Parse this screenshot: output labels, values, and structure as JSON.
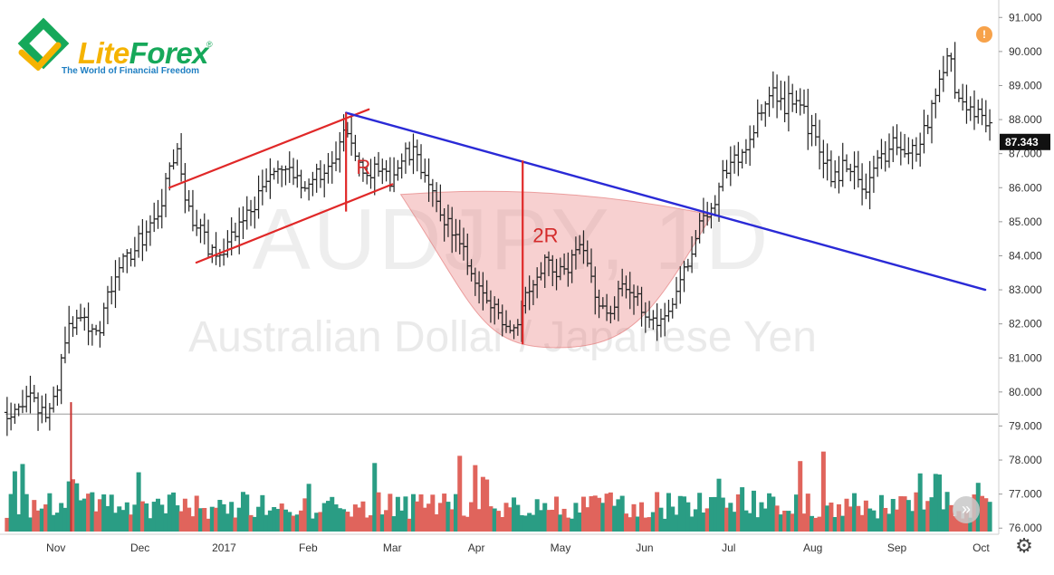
{
  "brand": {
    "name_part1": "Lite",
    "name_part2": "Forex",
    "registered": "®",
    "tagline": "The World of Financial Freedom",
    "colors": {
      "green": "#16a85a",
      "yellow": "#f5b301",
      "blue": "#1f7fc2"
    }
  },
  "watermark": {
    "symbol": "AUDJPY, 1D",
    "description": "Australian Dollar / Japanese Yen"
  },
  "alert_badge": {
    "icon": "exclamation-icon",
    "glyph": "!"
  },
  "scroll_button": {
    "icon": "double-chevron-right-icon",
    "glyph": "»"
  },
  "settings_button": {
    "icon": "gear-icon",
    "glyph": "⚙"
  },
  "chart_data": {
    "type": "ohlc-bar",
    "instrument": "AUDJPY",
    "timeframe": "1D",
    "y_axis": {
      "position": "right",
      "ylim": [
        75.9,
        91.3
      ],
      "ticks": [
        76.0,
        77.0,
        78.0,
        79.0,
        80.0,
        81.0,
        82.0,
        83.0,
        84.0,
        85.0,
        86.0,
        87.0,
        88.0,
        89.0,
        90.0,
        91.0
      ],
      "tick_labels": [
        "76.000",
        "77.000",
        "78.000",
        "79.000",
        "80.000",
        "81.000",
        "82.000",
        "83.000",
        "84.000",
        "85.000",
        "86.000",
        "87.000",
        "88.000",
        "89.000",
        "90.000",
        "91.000"
      ]
    },
    "x_axis": {
      "labels": [
        {
          "text": "Nov",
          "month": 0.6
        },
        {
          "text": "Dec",
          "month": 1.6
        },
        {
          "text": "2017",
          "month": 2.6
        },
        {
          "text": "Feb",
          "month": 3.6
        },
        {
          "text": "Mar",
          "month": 4.6
        },
        {
          "text": "Apr",
          "month": 5.6
        },
        {
          "text": "May",
          "month": 6.6
        },
        {
          "text": "Jun",
          "month": 7.6
        },
        {
          "text": "Jul",
          "month": 8.6
        },
        {
          "text": "Aug",
          "month": 9.6
        },
        {
          "text": "Sep",
          "month": 10.6
        },
        {
          "text": "Oct",
          "month": 11.6
        }
      ],
      "month_range": [
        0,
        11.8
      ]
    },
    "current_price": {
      "value": 87.343,
      "label": "87.343"
    },
    "reference_level": 79.35,
    "price_path": [
      [
        0.0,
        79.4
      ],
      [
        0.25,
        79.8
      ],
      [
        0.5,
        79.3
      ],
      [
        0.6,
        80.0
      ],
      [
        0.7,
        81.5
      ],
      [
        0.85,
        82.3
      ],
      [
        1.0,
        82.0
      ],
      [
        1.1,
        81.8
      ],
      [
        1.25,
        83.0
      ],
      [
        1.4,
        83.8
      ],
      [
        1.6,
        84.5
      ],
      [
        1.8,
        85.0
      ],
      [
        1.95,
        86.5
      ],
      [
        2.05,
        87.0
      ],
      [
        2.15,
        85.5
      ],
      [
        2.35,
        84.5
      ],
      [
        2.5,
        84.0
      ],
      [
        2.7,
        84.6
      ],
      [
        2.95,
        85.5
      ],
      [
        3.1,
        86.2
      ],
      [
        3.3,
        86.6
      ],
      [
        3.5,
        86.0
      ],
      [
        3.75,
        86.5
      ],
      [
        3.9,
        86.5
      ],
      [
        4.05,
        87.8
      ],
      [
        4.2,
        86.8
      ],
      [
        4.35,
        86.5
      ],
      [
        4.55,
        86.2
      ],
      [
        4.75,
        86.9
      ],
      [
        4.9,
        87.0
      ],
      [
        5.05,
        85.8
      ],
      [
        5.3,
        84.8
      ],
      [
        5.55,
        83.5
      ],
      [
        5.75,
        82.5
      ],
      [
        5.9,
        82.2
      ],
      [
        6.05,
        81.9
      ],
      [
        6.2,
        83.0
      ],
      [
        6.4,
        83.8
      ],
      [
        6.6,
        83.5
      ],
      [
        6.8,
        84.0
      ],
      [
        6.9,
        84.3
      ],
      [
        7.0,
        83.0
      ],
      [
        7.15,
        82.2
      ],
      [
        7.3,
        83.0
      ],
      [
        7.45,
        82.8
      ],
      [
        7.6,
        82.5
      ],
      [
        7.75,
        82.0
      ],
      [
        7.95,
        82.8
      ],
      [
        8.05,
        83.5
      ],
      [
        8.25,
        84.8
      ],
      [
        8.4,
        85.5
      ],
      [
        8.55,
        86.5
      ],
      [
        8.75,
        87.0
      ],
      [
        8.95,
        88.0
      ],
      [
        9.1,
        88.8
      ],
      [
        9.25,
        88.4
      ],
      [
        9.4,
        88.7
      ],
      [
        9.55,
        87.8
      ],
      [
        9.7,
        87.0
      ],
      [
        9.85,
        86.2
      ],
      [
        10.0,
        86.8
      ],
      [
        10.2,
        86.0
      ],
      [
        10.4,
        86.8
      ],
      [
        10.55,
        87.2
      ],
      [
        10.75,
        87.0
      ],
      [
        10.9,
        87.4
      ],
      [
        11.0,
        88.3
      ],
      [
        11.1,
        89.0
      ],
      [
        11.2,
        90.1
      ],
      [
        11.3,
        88.8
      ],
      [
        11.45,
        88.3
      ],
      [
        11.6,
        88.2
      ],
      [
        11.75,
        87.6
      ]
    ],
    "volume": {
      "baseline_price": 75.9,
      "scale_top_price": 78.6
    },
    "annotations": {
      "channel_upper": [
        [
          1.95,
          86.0
        ],
        [
          4.32,
          88.3
        ]
      ],
      "channel_lower": [
        [
          2.27,
          83.8
        ],
        [
          4.6,
          86.1
        ]
      ],
      "R_line": {
        "month": 4.05,
        "from": 85.3,
        "to": 88.2
      },
      "R_label": {
        "text": "R",
        "month": 4.17,
        "price": 86.4
      },
      "resistance_line": [
        [
          4.05,
          88.2
        ],
        [
          11.65,
          83.0
        ]
      ],
      "cup": {
        "start": [
          4.7,
          85.8
        ],
        "bottom": [
          6.55,
          81.3
        ],
        "end": [
          8.4,
          85.2
        ],
        "top_left": [
          4.7,
          85.8
        ],
        "top_right": [
          8.4,
          85.2
        ]
      },
      "2R_line": {
        "month": 6.15,
        "from": 81.4,
        "to": 86.8
      },
      "2R_label": {
        "text": "2R",
        "month": 6.27,
        "price": 84.4
      },
      "breakout_marker": {
        "month": 0.78,
        "price_from": 75.9,
        "price_to": 79.7
      }
    },
    "colors": {
      "bar": "#222222",
      "volume_up": "#2a9d84",
      "volume_down": "#e0645c",
      "channel": "#e02828",
      "resistance": "#2a2ad6",
      "cup_fill": "rgba(232,120,120,0.35)",
      "cup_stroke": "rgba(225,110,110,0.6)",
      "axis_text": "#333333",
      "price_tag_bg": "#111111"
    }
  }
}
